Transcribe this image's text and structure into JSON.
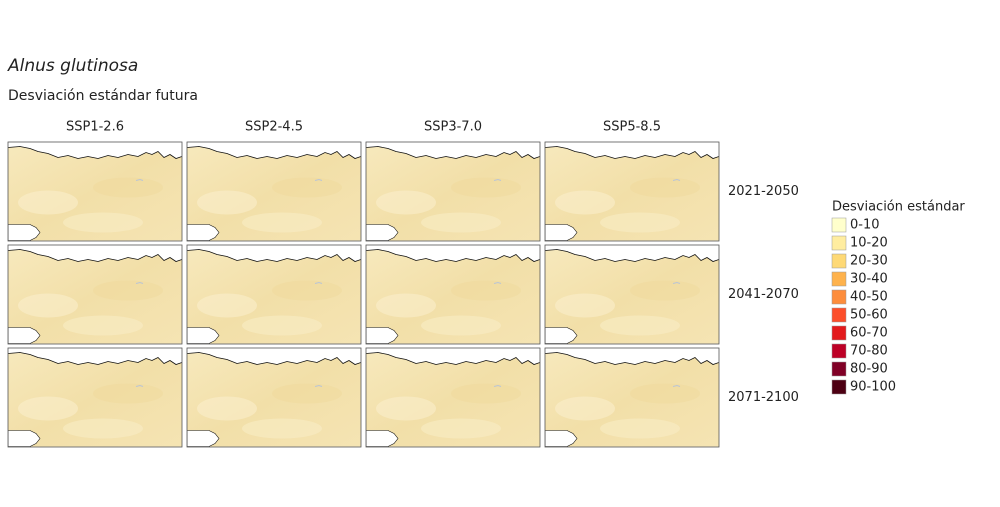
{
  "title": "Alnus glutinosa",
  "subtitle": "Desviación estándar futura",
  "columns": [
    "SSP1-2.6",
    "SSP2-4.5",
    "SSP3-7.0",
    "SSP5-8.5"
  ],
  "rows": [
    "2021-2050",
    "2041-2070",
    "2071-2100"
  ],
  "legend": {
    "title": "Desviación estándar",
    "items": [
      {
        "label": "0-10",
        "color": "#ffffcc"
      },
      {
        "label": "10-20",
        "color": "#ffeda0"
      },
      {
        "label": "20-30",
        "color": "#fed976"
      },
      {
        "label": "30-40",
        "color": "#feb24c"
      },
      {
        "label": "40-50",
        "color": "#fd8d3c"
      },
      {
        "label": "50-60",
        "color": "#fc4e2a"
      },
      {
        "label": "60-70",
        "color": "#e31a1c"
      },
      {
        "label": "70-80",
        "color": "#bd0026"
      },
      {
        "label": "80-90",
        "color": "#800026"
      },
      {
        "label": "90-100",
        "color": "#4d0013"
      }
    ]
  }
}
